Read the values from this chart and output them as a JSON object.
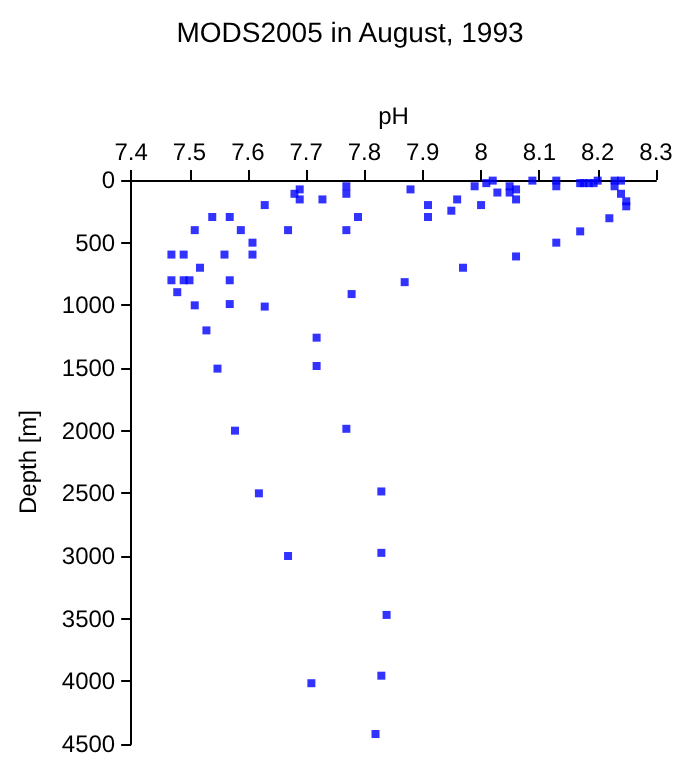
{
  "chart_data": {
    "type": "scatter",
    "title": "MODS2005 in August, 1993",
    "xlabel": "pH",
    "ylabel": "Depth [m]",
    "xlim": [
      7.4,
      8.3
    ],
    "xticks": [
      7.4,
      7.5,
      7.6,
      7.7,
      7.8,
      7.9,
      8,
      8.1,
      8.2,
      8.3
    ],
    "ylim": [
      4500,
      0
    ],
    "yticks": [
      0,
      500,
      1000,
      1500,
      2000,
      2500,
      3000,
      3500,
      4000,
      4500
    ],
    "grid": false,
    "marker": "square",
    "series": [
      {
        "color": "#0000ff",
        "x": [
          7.469,
          7.49,
          7.518,
          7.509,
          7.539,
          7.569,
          7.56,
          7.588,
          7.608,
          7.608,
          7.629,
          7.669,
          7.68,
          7.689,
          7.689,
          7.728,
          7.769,
          7.769,
          7.769,
          7.789,
          7.879,
          7.909,
          7.909,
          7.949,
          7.959,
          7.969,
          7.989,
          8.0,
          8.009,
          8.02,
          8.028,
          8.049,
          8.049,
          8.06,
          8.06,
          8.06,
          8.088,
          8.129,
          8.129,
          8.129,
          8.17,
          8.176,
          8.185,
          8.193,
          8.2,
          8.17,
          8.22,
          8.229,
          8.229,
          8.24,
          8.24,
          8.249,
          8.249,
          7.469,
          7.479,
          7.49,
          7.5,
          7.509,
          7.529,
          7.548,
          7.569,
          7.569,
          7.629,
          7.718,
          7.718,
          7.778,
          7.869,
          7.578,
          7.769,
          7.619,
          7.829,
          7.669,
          7.829,
          7.838,
          7.709,
          7.829,
          7.819
        ],
        "values": [
          595,
          595,
          700,
          400,
          295,
          295,
          595,
          400,
          500,
          595,
          200,
          400,
          110,
          75,
          155,
          155,
          50,
          110,
          400,
          295,
          75,
          200,
          295,
          245,
          155,
          700,
          50,
          200,
          25,
          5,
          100,
          50,
          100,
          75,
          155,
          610,
          5,
          5,
          50,
          500,
          25,
          25,
          25,
          25,
          5,
          410,
          305,
          5,
          50,
          5,
          110,
          170,
          210,
          800,
          895,
          800,
          800,
          1000,
          1200,
          1505,
          800,
          990,
          1010,
          1258,
          1484,
          910,
          815,
          2000,
          1985,
          2500,
          2485,
          3000,
          2975,
          3470,
          4015,
          3955,
          4420
        ]
      }
    ]
  }
}
